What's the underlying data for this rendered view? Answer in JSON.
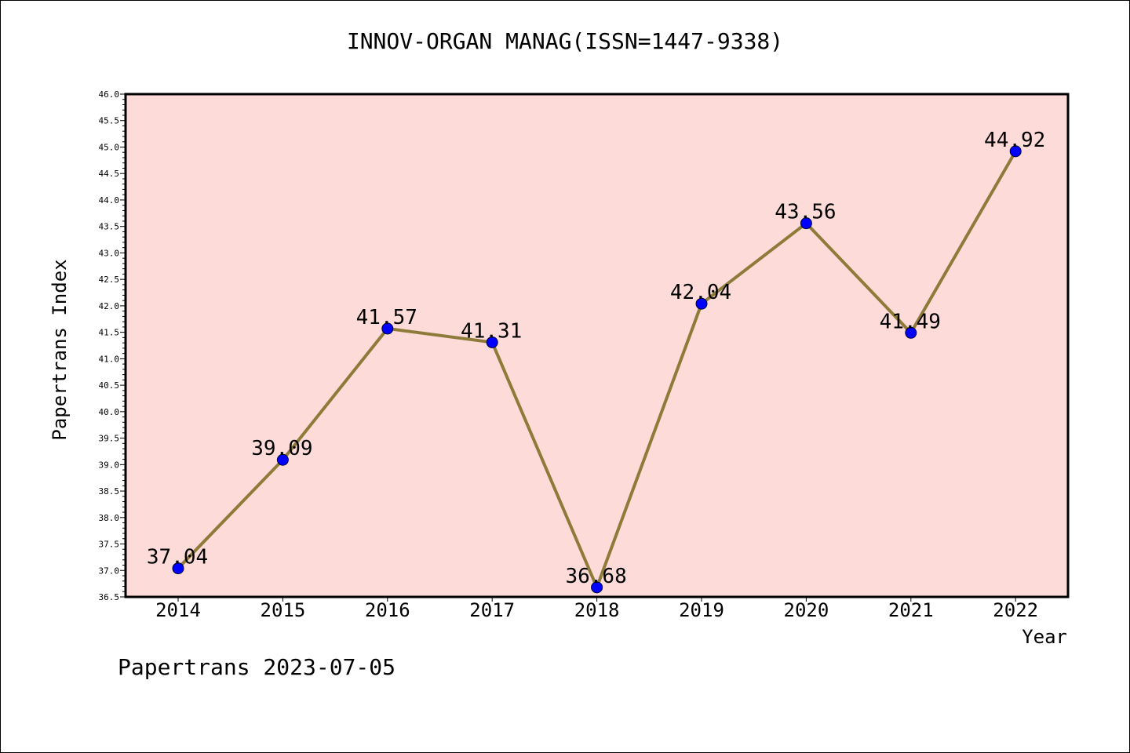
{
  "chart_data": {
    "type": "line",
    "title": "INNOV-ORGAN MANAG(ISSN=1447-9338)",
    "xlabel": "Year",
    "ylabel": "Papertrans Index",
    "x": [
      "2014",
      "2015",
      "2016",
      "2017",
      "2018",
      "2019",
      "2020",
      "2021",
      "2022"
    ],
    "series": [
      {
        "values": [
          37.04,
          39.09,
          41.57,
          41.31,
          36.68,
          42.04,
          43.56,
          41.49,
          44.92
        ]
      }
    ],
    "data_labels": [
      "37.04",
      "39.09",
      "41.57",
      "41.31",
      "36.68",
      "42.04",
      "43.56",
      "41.49",
      "44.92"
    ],
    "ylim": [
      36.5,
      46.0
    ],
    "yticks": [
      "36.5",
      "37.0",
      "37.5",
      "38.0",
      "38.5",
      "39.0",
      "39.5",
      "40.0",
      "40.5",
      "41.0",
      "41.5",
      "42.0",
      "42.5",
      "43.0",
      "43.5",
      "44.0",
      "44.5",
      "45.0",
      "45.5",
      "46.0"
    ],
    "grid": false,
    "legend": "none",
    "colors": {
      "plot_background": "#fddbd8",
      "line": "#8e7b3a",
      "marker": "#0000ff",
      "axis": "#000000"
    },
    "footer": "Papertrans 2023-07-05"
  }
}
